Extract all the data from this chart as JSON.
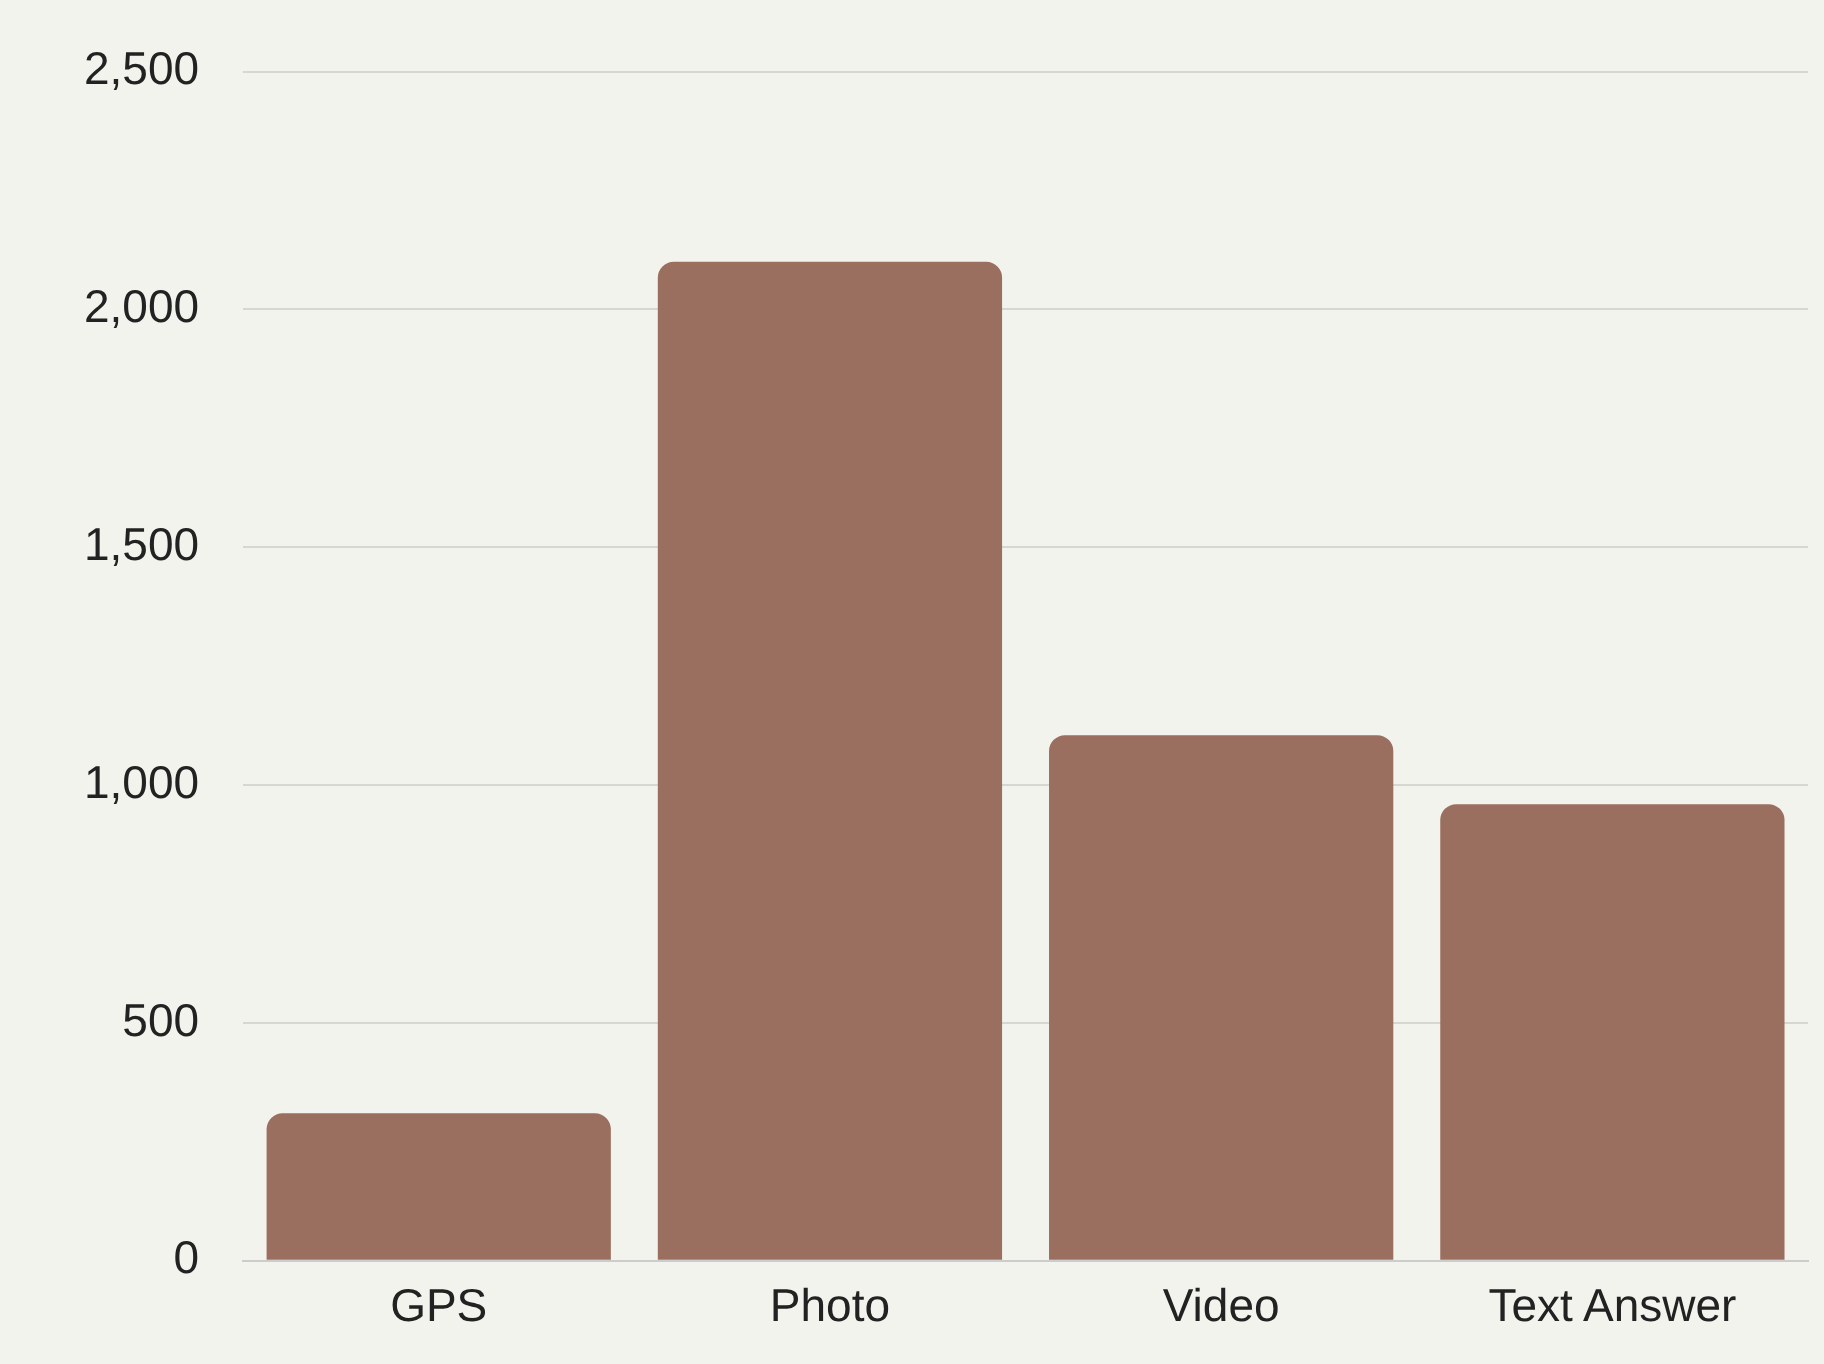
{
  "chart_data": {
    "type": "bar",
    "categories": [
      "GPS",
      "Photo",
      "Video",
      "Text Answer"
    ],
    "values": [
      310,
      2100,
      1105,
      960
    ],
    "color": "#9b6f5f",
    "ylim": [
      0,
      2500
    ],
    "yticks": [
      0,
      500,
      {
        "value": 1000,
        "label": "1,000"
      },
      {
        "value": 1500,
        "label": "1,500"
      },
      {
        "value": 2000,
        "label": "2,000"
      },
      {
        "value": 2500,
        "label": "2,500"
      }
    ],
    "grid": "y",
    "legend": false
  }
}
